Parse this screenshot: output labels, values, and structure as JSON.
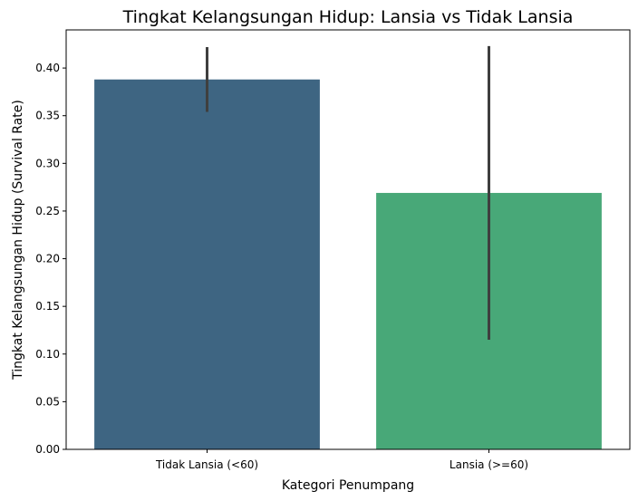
{
  "chart_data": {
    "type": "bar",
    "title": "Tingkat Kelangsungan Hidup: Lansia vs Tidak Lansia",
    "xlabel": "Kategori Penumpang",
    "ylabel": "Tingkat Kelangsungan Hidup (Survival Rate)",
    "categories": [
      "Tidak Lansia (<60)",
      "Lansia (>=60)"
    ],
    "values": [
      0.388,
      0.269
    ],
    "error_low": [
      0.354,
      0.115
    ],
    "error_high": [
      0.422,
      0.423
    ],
    "colors": [
      "#3e6582",
      "#48a878"
    ],
    "error_color": "#3f3f3f",
    "ylim": [
      0,
      0.44
    ],
    "yticks": [
      0.0,
      0.05,
      0.1,
      0.15,
      0.2,
      0.25,
      0.3,
      0.35,
      0.4
    ],
    "ytick_labels": [
      "0.00",
      "0.05",
      "0.10",
      "0.15",
      "0.20",
      "0.25",
      "0.30",
      "0.35",
      "0.40"
    ],
    "grid": false,
    "legend": "none"
  }
}
